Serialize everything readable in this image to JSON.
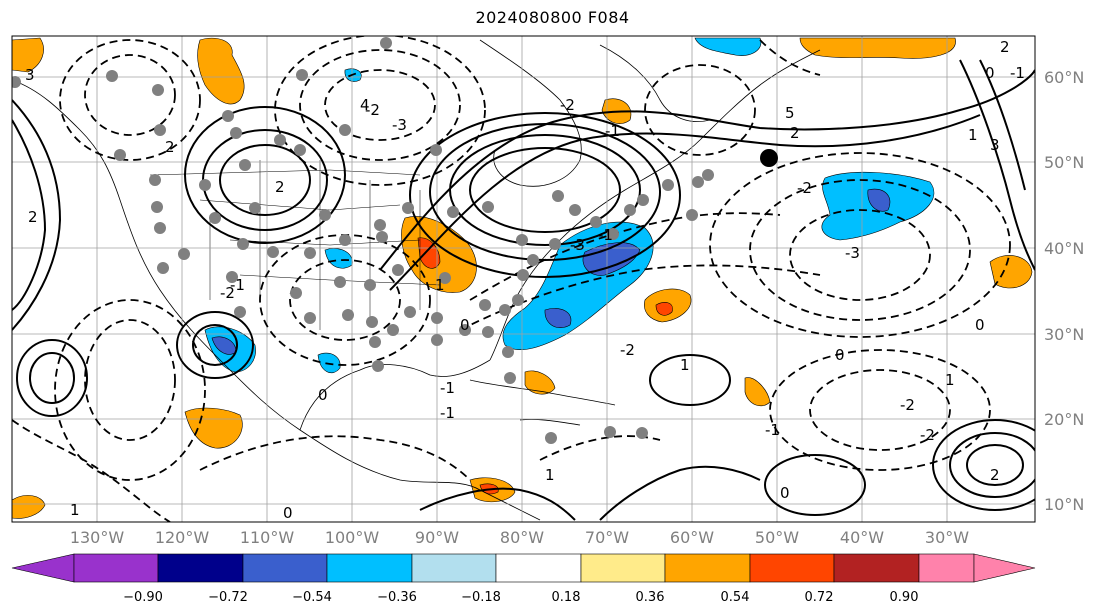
{
  "title": "2024080800 F084",
  "lat_labels": [
    "60°N",
    "50°N",
    "40°N",
    "30°N",
    "20°N",
    "10°N"
  ],
  "lon_labels": [
    "130°W",
    "120°W",
    "110°W",
    "100°W",
    "90°W",
    "80°W",
    "70°W",
    "60°W",
    "50°W",
    "40°W",
    "30°W"
  ],
  "colorbar": {
    "colors": [
      "#9932cc",
      "#00008b",
      "#3a5fcd",
      "#00bfff",
      "#b2dfee",
      "#ffffff",
      "#ffeb8a",
      "#ffa500",
      "#ff4500",
      "#b22222",
      "#ff82ab"
    ],
    "ticks": [
      "−0.90",
      "−0.72",
      "−0.54",
      "−0.36",
      "−0.18",
      "0.18",
      "0.36",
      "0.54",
      "0.72",
      "0.90"
    ]
  },
  "contour_labels": [
    "2",
    "2",
    "-2",
    "5",
    "2",
    "-2",
    "0",
    "-1",
    "1",
    "3",
    "-1",
    "-2",
    "1",
    "-1",
    "0",
    "-2",
    "-1",
    "-2",
    "1",
    "0",
    "2",
    "-3",
    "-2",
    "1",
    "-1",
    "0",
    "0",
    "-2",
    "4",
    "-3",
    "0",
    "-1",
    "1",
    "-1",
    "2",
    "3",
    "-3",
    "0",
    "2",
    "1"
  ],
  "marker_color": "#808080",
  "target_marker_color": "#000000"
}
